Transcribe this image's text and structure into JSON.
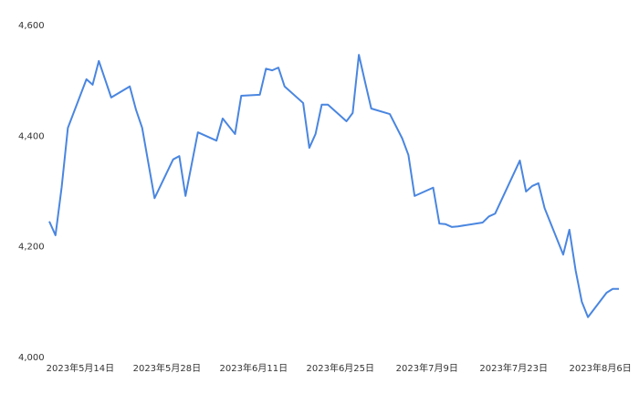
{
  "chart_data": {
    "type": "line",
    "x": [
      "2023-05-09",
      "2023-05-10",
      "2023-05-11",
      "2023-05-12",
      "2023-05-15",
      "2023-05-16",
      "2023-05-17",
      "2023-05-19",
      "2023-05-22",
      "2023-05-23",
      "2023-05-24",
      "2023-05-26",
      "2023-05-29",
      "2023-05-30",
      "2023-05-31",
      "2023-06-02",
      "2023-06-05",
      "2023-06-06",
      "2023-06-08",
      "2023-06-09",
      "2023-06-12",
      "2023-06-13",
      "2023-06-14",
      "2023-06-15",
      "2023-06-16",
      "2023-06-19",
      "2023-06-20",
      "2023-06-21",
      "2023-06-22",
      "2023-06-23",
      "2023-06-26",
      "2023-06-27",
      "2023-06-28",
      "2023-06-29",
      "2023-06-30",
      "2023-07-03",
      "2023-07-05",
      "2023-07-06",
      "2023-07-07",
      "2023-07-10",
      "2023-07-11",
      "2023-07-12",
      "2023-07-13",
      "2023-07-14",
      "2023-07-18",
      "2023-07-19",
      "2023-07-20",
      "2023-07-24",
      "2023-07-25",
      "2023-07-26",
      "2023-07-27",
      "2023-07-28",
      "2023-07-31",
      "2023-08-01",
      "2023-08-02",
      "2023-08-03",
      "2023-08-04",
      "2023-08-07",
      "2023-08-08",
      "2023-08-09"
    ],
    "series": [
      {
        "color": "#4a86e0",
        "values": [
          4246,
          4221,
          4308,
          4415,
          4503,
          4493,
          4536,
          4470,
          4490,
          4448,
          4415,
          4288,
          4358,
          4364,
          4292,
          4407,
          4392,
          4432,
          4404,
          4473,
          4475,
          4522,
          4519,
          4524,
          4490,
          4460,
          4379,
          4404,
          4457,
          4457,
          4427,
          4442,
          4547,
          4498,
          4450,
          4440,
          4396,
          4366,
          4292,
          4307,
          4242,
          4241,
          4236,
          4237,
          4244,
          4255,
          4260,
          4356,
          4300,
          4310,
          4315,
          4270,
          4186,
          4231,
          4158,
          4101,
          4073,
          4117,
          4124,
          4124
        ]
      }
    ],
    "xlim": [
      "2023-05-09",
      "2023-08-09"
    ],
    "xticks": [
      {
        "value": "2023-05-14",
        "label": "2023年5月14日"
      },
      {
        "value": "2023-05-28",
        "label": "2023年5月28日"
      },
      {
        "value": "2023-06-11",
        "label": "2023年6月11日"
      },
      {
        "value": "2023-06-25",
        "label": "2023年6月25日"
      },
      {
        "value": "2023-07-09",
        "label": "2023年7月9日"
      },
      {
        "value": "2023-07-23",
        "label": "2023年7月23日"
      },
      {
        "value": "2023-08-06",
        "label": "2023年8月6日"
      }
    ],
    "ylim": [
      4000,
      4600
    ],
    "yticks": [
      {
        "value": 4000,
        "label": "4,000"
      },
      {
        "value": 4200,
        "label": "4,200"
      },
      {
        "value": 4400,
        "label": "4,400"
      },
      {
        "value": 4600,
        "label": "4,600"
      }
    ]
  }
}
